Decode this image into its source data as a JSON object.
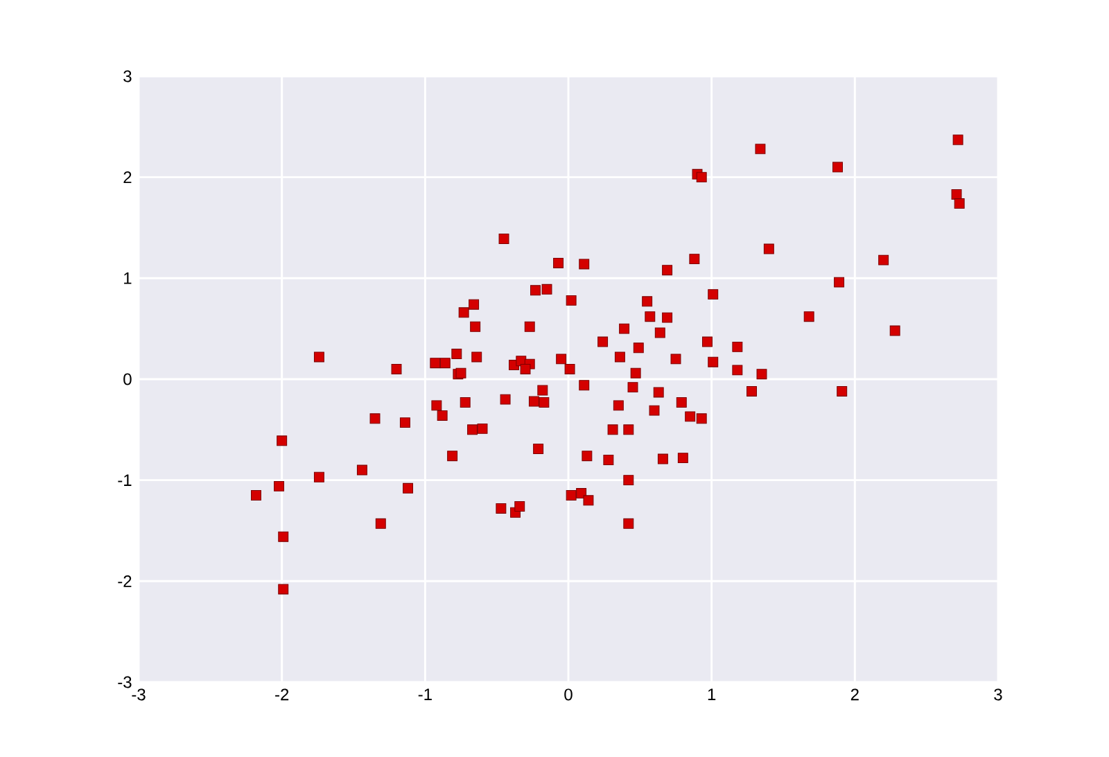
{
  "chart_data": {
    "type": "scatter",
    "marker": "square",
    "grid": true,
    "color": "#d40000",
    "xlim": [
      -3,
      3
    ],
    "ylim": [
      -3,
      3
    ],
    "xticks": [
      -3,
      -2,
      -1,
      0,
      1,
      2,
      3
    ],
    "yticks": [
      -3,
      -2,
      -1,
      0,
      1,
      2,
      3
    ],
    "x": [
      -2.18,
      -2.02,
      -2.0,
      -1.99,
      -1.99,
      -1.74,
      -1.74,
      -1.44,
      -1.35,
      -1.31,
      -1.2,
      -1.14,
      -1.12,
      -0.93,
      -0.92,
      -0.88,
      -0.86,
      -0.81,
      -0.78,
      -0.77,
      -0.75,
      -0.73,
      -0.72,
      -0.66,
      -0.67,
      -0.65,
      -0.64,
      -0.6,
      -0.45,
      -0.44,
      -0.47,
      -0.38,
      -0.33,
      -0.27,
      -0.3,
      -0.27,
      -0.37,
      -0.34,
      -0.23,
      -0.15,
      -0.24,
      -0.17,
      -0.18,
      -0.21,
      -0.07,
      -0.05,
      0.01,
      0.02,
      0.02,
      0.09,
      0.14,
      0.11,
      0.11,
      0.13,
      0.24,
      0.28,
      0.31,
      0.35,
      0.36,
      0.39,
      0.42,
      0.42,
      0.42,
      0.45,
      0.47,
      0.49,
      0.55,
      0.57,
      0.6,
      0.63,
      0.64,
      0.66,
      0.69,
      0.69,
      0.75,
      0.79,
      0.8,
      0.85,
      0.88,
      0.9,
      0.93,
      0.93,
      0.97,
      1.01,
      1.01,
      1.18,
      1.18,
      1.28,
      1.34,
      1.35,
      1.4,
      1.68,
      1.88,
      1.89,
      1.91,
      2.2,
      2.28,
      2.71,
      2.72,
      2.73
    ],
    "values": [
      -1.15,
      -1.06,
      -0.61,
      -1.56,
      -2.08,
      0.22,
      -0.97,
      -0.9,
      -0.39,
      -1.43,
      0.1,
      -0.43,
      -1.08,
      0.16,
      -0.26,
      -0.36,
      0.16,
      -0.76,
      0.25,
      0.05,
      0.06,
      0.66,
      -0.23,
      0.74,
      -0.5,
      0.52,
      0.22,
      -0.49,
      1.39,
      -0.2,
      -1.28,
      0.14,
      0.18,
      0.15,
      0.1,
      0.52,
      -1.32,
      -1.26,
      0.88,
      0.89,
      -0.22,
      -0.23,
      -0.11,
      -0.69,
      1.15,
      0.2,
      0.1,
      0.78,
      -1.15,
      -1.13,
      -1.2,
      1.14,
      -0.06,
      -0.76,
      0.37,
      -0.8,
      -0.5,
      -0.26,
      0.22,
      0.5,
      -0.5,
      -1.0,
      -1.43,
      -0.08,
      0.06,
      0.31,
      0.77,
      0.62,
      -0.31,
      -0.13,
      0.46,
      -0.79,
      1.08,
      0.61,
      0.2,
      -0.23,
      -0.78,
      -0.37,
      1.19,
      2.03,
      2.0,
      -0.39,
      0.37,
      0.84,
      0.17,
      0.32,
      0.09,
      -0.12,
      2.28,
      0.05,
      1.29,
      0.62,
      2.1,
      0.96,
      -0.12,
      1.18,
      0.48,
      1.83,
      2.37,
      1.74
    ]
  }
}
